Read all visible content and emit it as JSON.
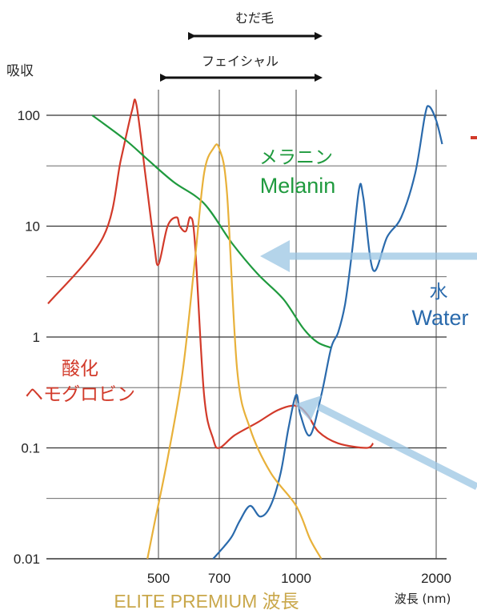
{
  "chart_data": {
    "type": "line",
    "ylabel": "吸収",
    "xlabel": "波長 (nm)",
    "caption": "ELITE PREMIUM 波長",
    "y_scale": "log",
    "ylim": [
      0.01,
      100
    ],
    "y_ticks": [
      "100",
      "10",
      "1",
      "0.1",
      "0.01"
    ],
    "x_ticks": [
      "500",
      "700",
      "1000",
      "2000"
    ],
    "ranges": [
      {
        "label": "むだ毛",
        "from": 630,
        "to": 1160
      },
      {
        "label": "フェイシャル",
        "from": 410,
        "to": 1160
      }
    ],
    "series": [
      {
        "jp": "酸化",
        "jp2": "ヘモグロビン",
        "color": "#d23a2a",
        "points": [
          [
            0,
            2
          ],
          [
            250,
            8
          ],
          [
            330,
            40
          ],
          [
            380,
            110
          ],
          [
            400,
            125
          ],
          [
            440,
            30
          ],
          [
            480,
            7
          ],
          [
            500,
            4.5
          ],
          [
            530,
            10
          ],
          [
            560,
            12
          ],
          [
            570,
            10
          ],
          [
            590,
            9
          ],
          [
            605,
            12
          ],
          [
            620,
            7
          ],
          [
            650,
            0.3
          ],
          [
            680,
            0.12
          ],
          [
            700,
            0.1
          ],
          [
            760,
            0.13
          ],
          [
            850,
            0.17
          ],
          [
            930,
            0.22
          ],
          [
            1000,
            0.24
          ],
          [
            1080,
            0.2
          ],
          [
            1160,
            0.14
          ],
          [
            1300,
            0.11
          ],
          [
            1500,
            0.1
          ],
          [
            1550,
            0.11
          ]
        ]
      },
      {
        "jp": "メラニン",
        "en": "Melanin",
        "color": "#1f9a3e",
        "points": [
          [
            200,
            100
          ],
          [
            350,
            60
          ],
          [
            450,
            40
          ],
          [
            550,
            25
          ],
          [
            650,
            16
          ],
          [
            750,
            7
          ],
          [
            850,
            3.7
          ],
          [
            950,
            2.2
          ],
          [
            1050,
            1.2
          ],
          [
            1150,
            0.9
          ],
          [
            1250,
            0.8
          ]
        ]
      },
      {
        "jp": "水",
        "en": "Water",
        "color": "#2a6aac",
        "points": [
          [
            680,
            0.01
          ],
          [
            720,
            0.013
          ],
          [
            750,
            0.016
          ],
          [
            780,
            0.022
          ],
          [
            820,
            0.03
          ],
          [
            860,
            0.024
          ],
          [
            900,
            0.03
          ],
          [
            940,
            0.06
          ],
          [
            970,
            0.15
          ],
          [
            1000,
            0.3
          ],
          [
            1030,
            0.2
          ],
          [
            1100,
            0.13
          ],
          [
            1180,
            0.3
          ],
          [
            1250,
            0.8
          ],
          [
            1300,
            1.1
          ],
          [
            1350,
            2
          ],
          [
            1400,
            6
          ],
          [
            1450,
            22
          ],
          [
            1480,
            18
          ],
          [
            1550,
            4
          ],
          [
            1650,
            8
          ],
          [
            1750,
            12
          ],
          [
            1850,
            30
          ],
          [
            1920,
            100
          ],
          [
            1950,
            120
          ],
          [
            2000,
            90
          ],
          [
            2050,
            55
          ]
        ]
      },
      {
        "jp": "ELITE PREMIUM 波長",
        "color": "#e8b13a",
        "points": [
          [
            450,
            0.01
          ],
          [
            480,
            0.02
          ],
          [
            530,
            0.08
          ],
          [
            580,
            0.5
          ],
          [
            620,
            5
          ],
          [
            650,
            30
          ],
          [
            680,
            50
          ],
          [
            700,
            50
          ],
          [
            730,
            20
          ],
          [
            770,
            0.5
          ],
          [
            820,
            0.15
          ],
          [
            900,
            0.06
          ],
          [
            1000,
            0.03
          ],
          [
            1100,
            0.015
          ],
          [
            1180,
            0.01
          ]
        ]
      }
    ]
  }
}
